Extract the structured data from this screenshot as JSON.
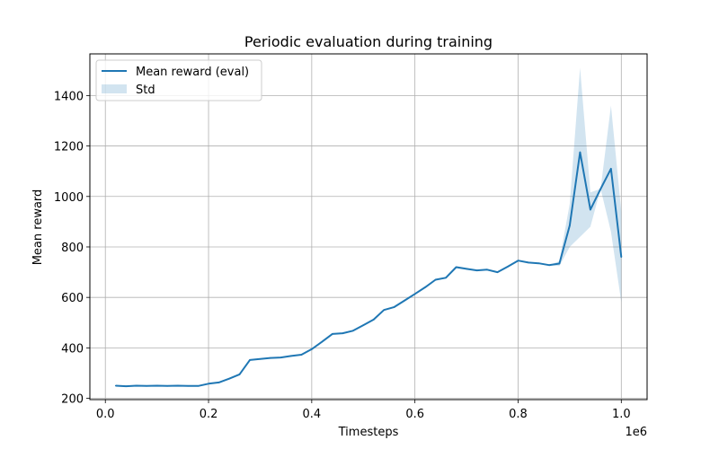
{
  "chart_data": {
    "type": "line",
    "title": "Periodic evaluation during training",
    "xlabel": "Timesteps",
    "ylabel": "Mean reward",
    "x_offset_text": "1e6",
    "xlim": [
      -0.03,
      1.05
    ],
    "ylim": [
      195,
      1565
    ],
    "x_ticks": [
      0.0,
      0.2,
      0.4,
      0.6,
      0.8,
      1.0
    ],
    "x_tick_labels": [
      "0.0",
      "0.2",
      "0.4",
      "0.6",
      "0.8",
      "1.0"
    ],
    "y_ticks": [
      200,
      400,
      600,
      800,
      1000,
      1200,
      1400
    ],
    "y_tick_labels": [
      "200",
      "400",
      "600",
      "800",
      "1000",
      "1200",
      "1400"
    ],
    "grid": true,
    "legend_position": "top-left",
    "legend": [
      {
        "label": "Mean reward (eval)",
        "kind": "line",
        "color": "#1f77b4"
      },
      {
        "label": "Std",
        "kind": "band",
        "color": "#1f77b4"
      }
    ],
    "x": [
      0.02,
      0.04,
      0.06,
      0.08,
      0.1,
      0.12,
      0.14,
      0.16,
      0.18,
      0.2,
      0.22,
      0.24,
      0.26,
      0.28,
      0.3,
      0.32,
      0.34,
      0.36,
      0.38,
      0.4,
      0.42,
      0.44,
      0.46,
      0.48,
      0.5,
      0.52,
      0.54,
      0.56,
      0.58,
      0.6,
      0.62,
      0.64,
      0.66,
      0.68,
      0.7,
      0.72,
      0.74,
      0.76,
      0.78,
      0.8,
      0.82,
      0.84,
      0.86,
      0.88,
      0.9,
      0.92,
      0.94,
      0.96,
      0.98,
      1.0
    ],
    "series": [
      {
        "name": "Mean reward (eval)",
        "color": "#1f77b4",
        "values": [
          250,
          248,
          250,
          249,
          250,
          249,
          250,
          249,
          249,
          258,
          263,
          278,
          295,
          352,
          356,
          360,
          362,
          368,
          373,
          395,
          424,
          455,
          458,
          468,
          490,
          512,
          550,
          562,
          588,
          614,
          640,
          670,
          678,
          720,
          713,
          707,
          710,
          700,
          722,
          746,
          738,
          735,
          728,
          734,
          885,
          1175,
          948,
          1030,
          1110,
          760
        ],
        "std_low": [
          250,
          248,
          250,
          249,
          250,
          249,
          250,
          249,
          249,
          258,
          263,
          278,
          295,
          352,
          356,
          360,
          362,
          368,
          373,
          395,
          424,
          455,
          458,
          468,
          490,
          512,
          550,
          562,
          588,
          614,
          640,
          670,
          678,
          720,
          713,
          707,
          710,
          700,
          722,
          746,
          738,
          735,
          728,
          724,
          800,
          840,
          880,
          1030,
          860,
          580
        ],
        "std_high": [
          250,
          248,
          250,
          249,
          250,
          249,
          250,
          249,
          249,
          258,
          263,
          278,
          295,
          352,
          356,
          360,
          362,
          368,
          373,
          395,
          424,
          455,
          458,
          468,
          490,
          512,
          550,
          562,
          588,
          614,
          640,
          670,
          678,
          720,
          713,
          707,
          710,
          700,
          722,
          746,
          738,
          735,
          728,
          744,
          970,
          1510,
          1016,
          1030,
          1360,
          940
        ]
      }
    ]
  }
}
